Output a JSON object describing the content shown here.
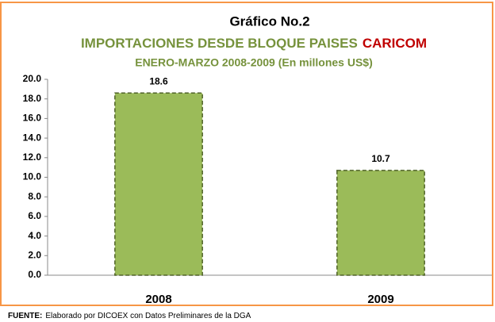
{
  "chart_data": {
    "type": "bar",
    "title": "Gráfico No.2",
    "subtitle": [
      "IMPORTACIONES DESDE BLOQUE PAISES",
      "CARICOM"
    ],
    "subtitle_colors": [
      "#76923c",
      "#c00000"
    ],
    "period": "ENERO-MARZO 2008-2009 (En millones US$)",
    "categories": [
      "2008",
      "2009"
    ],
    "values": [
      18.6,
      10.7
    ],
    "color": "#9bbb59",
    "ylim": [
      0,
      20
    ],
    "yticks": [
      {
        "value": 0,
        "label": "0.0"
      },
      {
        "value": 2,
        "label": "2.0"
      },
      {
        "value": 4,
        "label": "4.0"
      },
      {
        "value": 6,
        "label": "6.0"
      },
      {
        "value": 8,
        "label": "8.0"
      },
      {
        "value": 10,
        "label": "10.0"
      },
      {
        "value": 12,
        "label": "12.0"
      },
      {
        "value": 14,
        "label": "14.0"
      },
      {
        "value": 16,
        "label": "16.0"
      },
      {
        "value": 18,
        "label": "18.0"
      },
      {
        "value": 20,
        "label": "20.0"
      }
    ],
    "grid": false,
    "source_label": "FUENTE:",
    "source": "Elaborado por DICOEX con Datos Preliminares de la DGA"
  }
}
